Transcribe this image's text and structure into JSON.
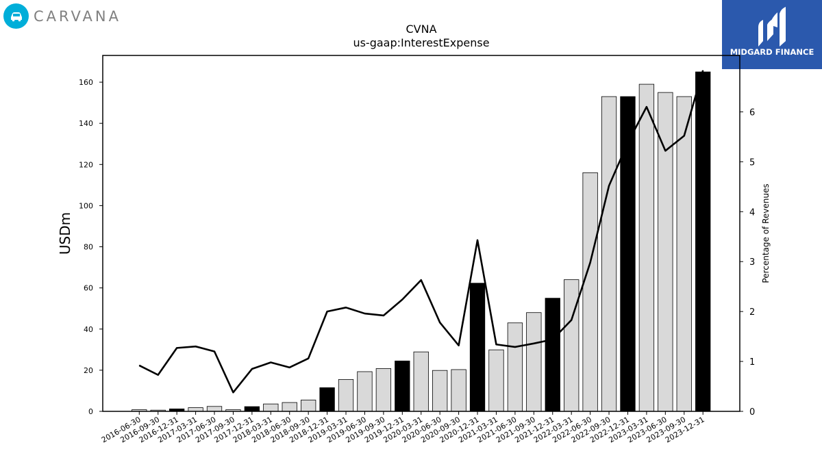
{
  "brand": {
    "name": "CARVANA",
    "icon": "car-icon",
    "color": "#00aed9"
  },
  "badge": {
    "label": "MIDGARD FINANCE",
    "icon": "midgard-logo-icon",
    "color": "#2b59ad"
  },
  "chart_data": {
    "type": "bar",
    "title": "CVNA",
    "subtitle": "us-gaap:InterestExpense",
    "ylabel": "USDm",
    "y2label": "Percentage of Revenues",
    "ylim": [
      0,
      173
    ],
    "y2lim": [
      0,
      7.13
    ],
    "yticks": [
      0,
      20,
      40,
      60,
      80,
      100,
      120,
      140,
      160
    ],
    "y2ticks": [
      0,
      1,
      2,
      3,
      4,
      5,
      6
    ],
    "categories": [
      "2016-06-30",
      "2016-09-30",
      "2016-12-31",
      "2017-03-31",
      "2017-06-30",
      "2017-09-30",
      "2017-12-31",
      "2018-03-31",
      "2018-06-30",
      "2018-09-30",
      "2018-12-31",
      "2019-03-31",
      "2019-06-30",
      "2019-09-30",
      "2019-12-31",
      "2020-03-31",
      "2020-06-30",
      "2020-09-30",
      "2020-12-31",
      "2021-03-31",
      "2021-06-30",
      "2021-09-30",
      "2021-12-31",
      "2022-03-31",
      "2022-06-30",
      "2022-09-30",
      "2022-12-31",
      "2023-03-31",
      "2023-06-30",
      "2023-09-30",
      "2023-12-31"
    ],
    "series": [
      {
        "type": "bar",
        "values": [
          0.8,
          0.6,
          1.2,
          1.8,
          2.4,
          0.8,
          2.3,
          3.6,
          4.3,
          5.5,
          11.5,
          15.5,
          19.3,
          20.8,
          24.5,
          28.9,
          19.9,
          20.3,
          62.3,
          29.9,
          43.0,
          48.0,
          55.0,
          64.0,
          116.0,
          153.0,
          153.0,
          159.0,
          155.0,
          153.0,
          165.0
        ],
        "highlight": [
          false,
          false,
          true,
          false,
          false,
          false,
          true,
          false,
          false,
          false,
          true,
          false,
          false,
          false,
          true,
          false,
          false,
          false,
          true,
          false,
          false,
          false,
          true,
          false,
          false,
          false,
          true,
          false,
          false,
          false,
          true
        ],
        "colors": {
          "bar": "#d9d9d9",
          "highlight": "#000000",
          "edge": "#000000"
        }
      },
      {
        "type": "line",
        "axis": "right",
        "values": [
          0.92,
          0.73,
          1.27,
          1.3,
          1.2,
          0.38,
          0.85,
          0.98,
          0.88,
          1.06,
          2.0,
          2.08,
          1.96,
          1.92,
          2.24,
          2.63,
          1.78,
          1.32,
          3.43,
          1.34,
          1.29,
          1.36,
          1.44,
          1.83,
          2.98,
          4.52,
          5.38,
          6.1,
          5.22,
          5.52,
          6.83
        ],
        "color": "#000000"
      }
    ]
  }
}
